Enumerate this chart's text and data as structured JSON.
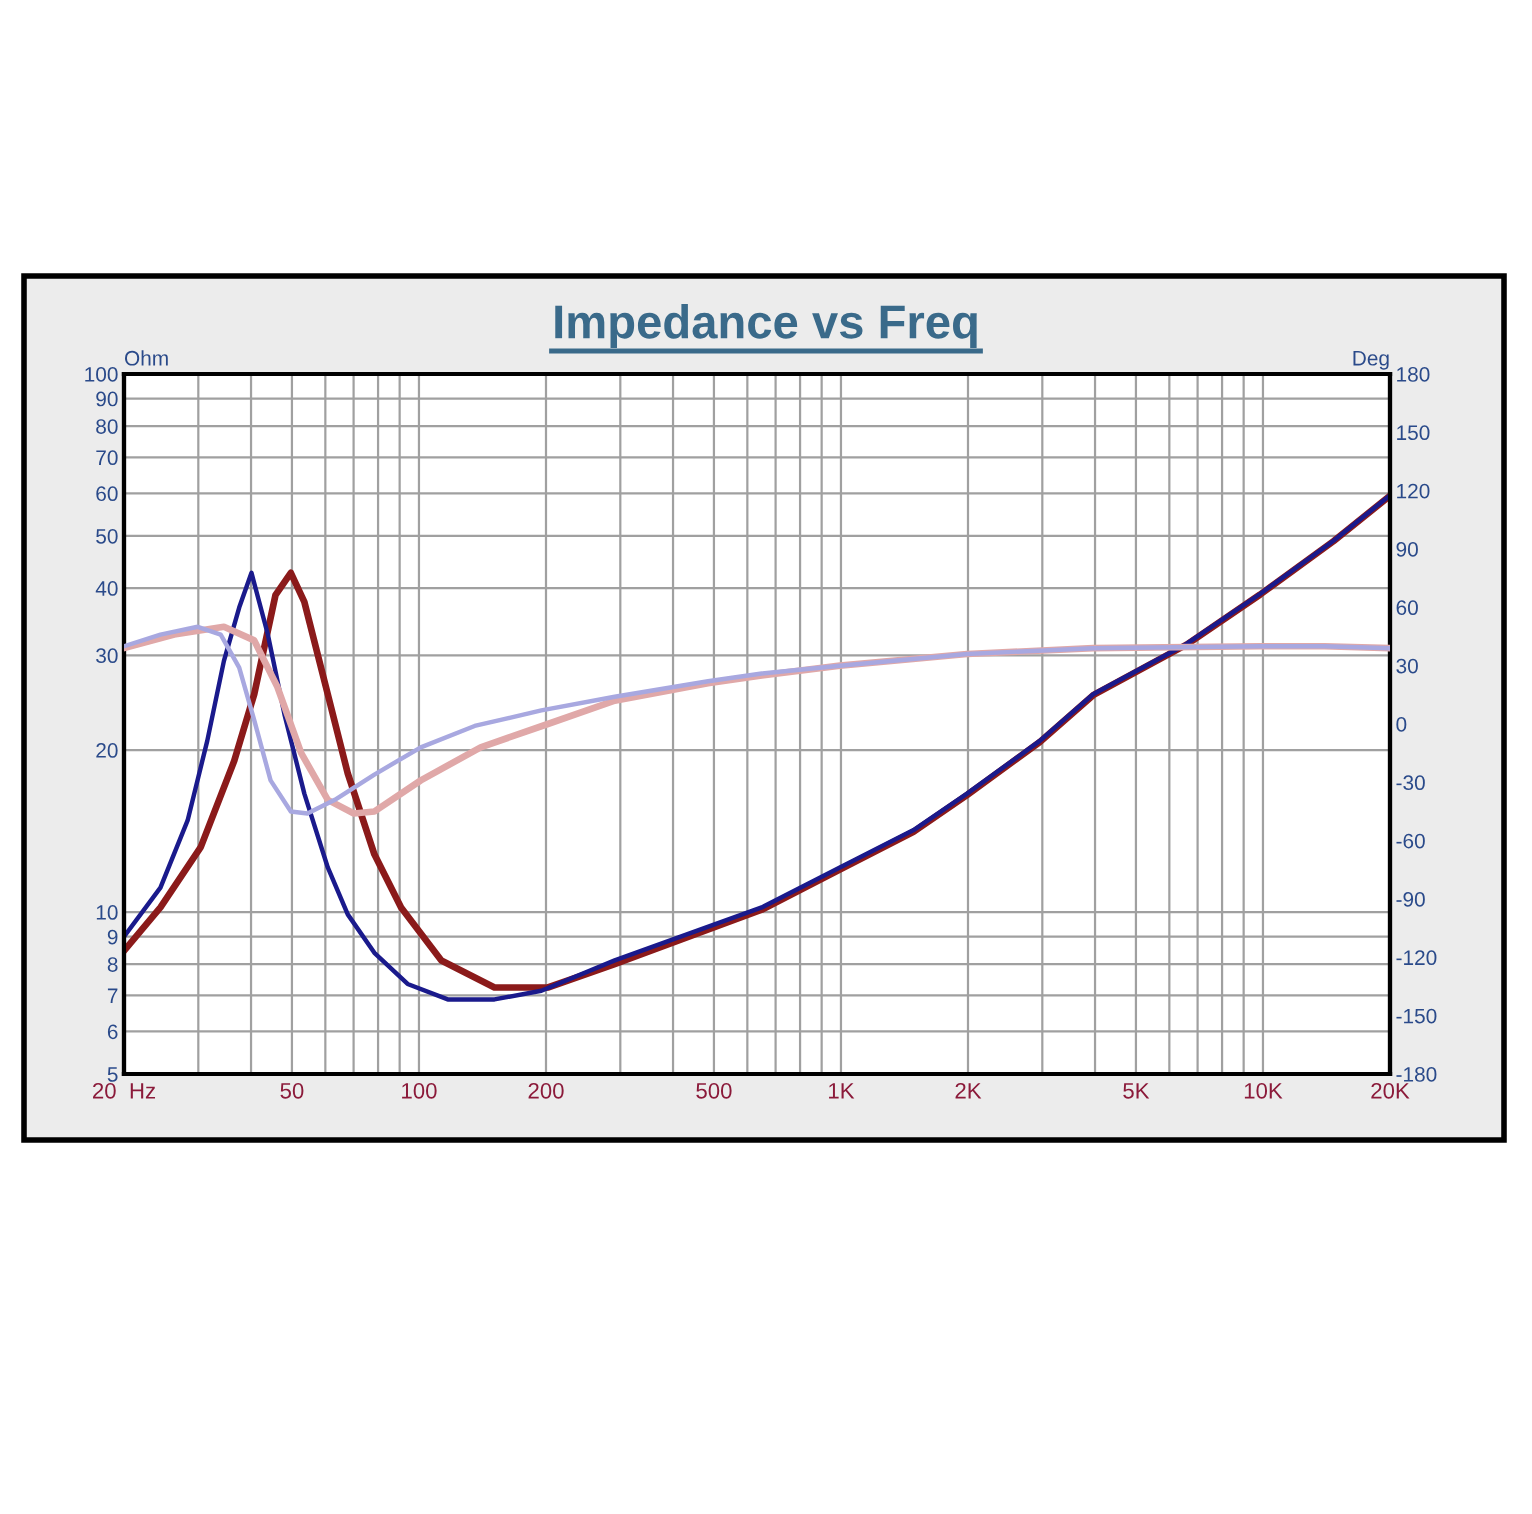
{
  "chart_data": {
    "type": "line",
    "title": "Impedance vs Freq",
    "ylabel": "Ohm",
    "y2label": "Deg",
    "log": "xy",
    "grid": true,
    "marker": "none",
    "line_style": "solid",
    "xlim": [
      20,
      20000
    ],
    "ylim": [
      5,
      100
    ],
    "y2lim": [
      -180,
      180
    ],
    "xticks": [
      {
        "value": 20,
        "label": "20  Hz"
      },
      {
        "value": 30,
        "label": null
      },
      {
        "value": 40,
        "label": null
      },
      50,
      {
        "value": 60,
        "label": null
      },
      {
        "value": 70,
        "label": null
      },
      {
        "value": 80,
        "label": null
      },
      {
        "value": 90,
        "label": null
      },
      100,
      200,
      {
        "value": 300,
        "label": null
      },
      {
        "value": 400,
        "label": null
      },
      500,
      {
        "value": 600,
        "label": null
      },
      {
        "value": 700,
        "label": null
      },
      {
        "value": 800,
        "label": null
      },
      {
        "value": 900,
        "label": null
      },
      {
        "value": 1000,
        "label": "1K"
      },
      {
        "value": 2000,
        "label": "2K"
      },
      {
        "value": 3000,
        "label": null
      },
      {
        "value": 4000,
        "label": null
      },
      {
        "value": 5000,
        "label": "5K"
      },
      {
        "value": 6000,
        "label": null
      },
      {
        "value": 7000,
        "label": null
      },
      {
        "value": 8000,
        "label": null
      },
      {
        "value": 9000,
        "label": null
      },
      {
        "value": 10000,
        "label": "10K"
      },
      {
        "value": 20000,
        "label": "20K"
      }
    ],
    "yticks": [
      5,
      6,
      7,
      8,
      9,
      10,
      20,
      30,
      40,
      50,
      60,
      70,
      80,
      90,
      100
    ],
    "y2ticks": [
      -180,
      -150,
      -120,
      -90,
      -60,
      -30,
      0,
      30,
      60,
      90,
      120,
      150,
      180
    ],
    "series": [
      {
        "color": "#e0a8a8",
        "axis": "y2",
        "x": [
          20,
          26.3,
          34.5,
          40.7,
          46.2,
          52.6,
          60.8,
          70.1,
          78.4,
          101,
          140,
          202,
          291,
          484,
          649,
          994,
          1990,
          3960,
          9840,
          14000,
          20000
        ],
        "values": [
          39,
          46,
          50,
          43,
          19,
          -15,
          -39,
          -46,
          -45,
          -29,
          -12,
          0,
          12,
          21,
          25,
          30,
          36,
          39,
          40,
          40,
          39
        ]
      },
      {
        "color": "#a8a8e0",
        "axis": "y2",
        "x": [
          20,
          24.4,
          29.9,
          33.9,
          37.5,
          40.7,
          44.5,
          49.7,
          54.4,
          63.2,
          78.4,
          101,
          135.5,
          195,
          291,
          484,
          649,
          994,
          1990,
          3960,
          9840,
          14000,
          20000
        ],
        "values": [
          40,
          46,
          50,
          46,
          29,
          2,
          -29,
          -45,
          -46,
          -39,
          -26,
          -12,
          -1,
          7,
          14,
          22,
          26,
          30,
          36,
          39,
          40,
          40,
          39
        ]
      },
      {
        "color": "#8b1a1a",
        "x": [
          20,
          24.4,
          30.4,
          36.5,
          40.7,
          45.7,
          49.7,
          53.5,
          60.8,
          67.8,
          78.4,
          90.7,
          113,
          151,
          202,
          291,
          649,
          994,
          1486,
          1990,
          2960,
          3960,
          6590,
          9840,
          14700,
          20000
        ],
        "values": [
          8.47,
          10.2,
          13.2,
          19.1,
          25.4,
          38.8,
          42.7,
          37.7,
          25.4,
          18.1,
          12.8,
          10.2,
          8.13,
          7.24,
          7.24,
          8.0,
          10.1,
          12.0,
          14.1,
          16.5,
          20.7,
          25.3,
          31.4,
          38.9,
          48.9,
          59.4
        ]
      },
      {
        "color": "#1a1a8c",
        "x": [
          20,
          24.4,
          28.3,
          31.5,
          34.5,
          37.5,
          40.1,
          43.8,
          48,
          53.5,
          60.8,
          67.8,
          78.4,
          94,
          117,
          151,
          195,
          291,
          649,
          994,
          1486,
          1990,
          2960,
          3960,
          6590,
          9840,
          14700,
          20000
        ],
        "values": [
          9.0,
          11.1,
          14.8,
          20.8,
          29.3,
          36.8,
          42.7,
          32.9,
          23.3,
          16.6,
          12.1,
          9.9,
          8.4,
          7.35,
          6.88,
          6.88,
          7.14,
          8.13,
          10.2,
          12.1,
          14.2,
          16.6,
          20.8,
          25.4,
          31.5,
          39.0,
          49.0,
          59.5
        ]
      }
    ]
  }
}
